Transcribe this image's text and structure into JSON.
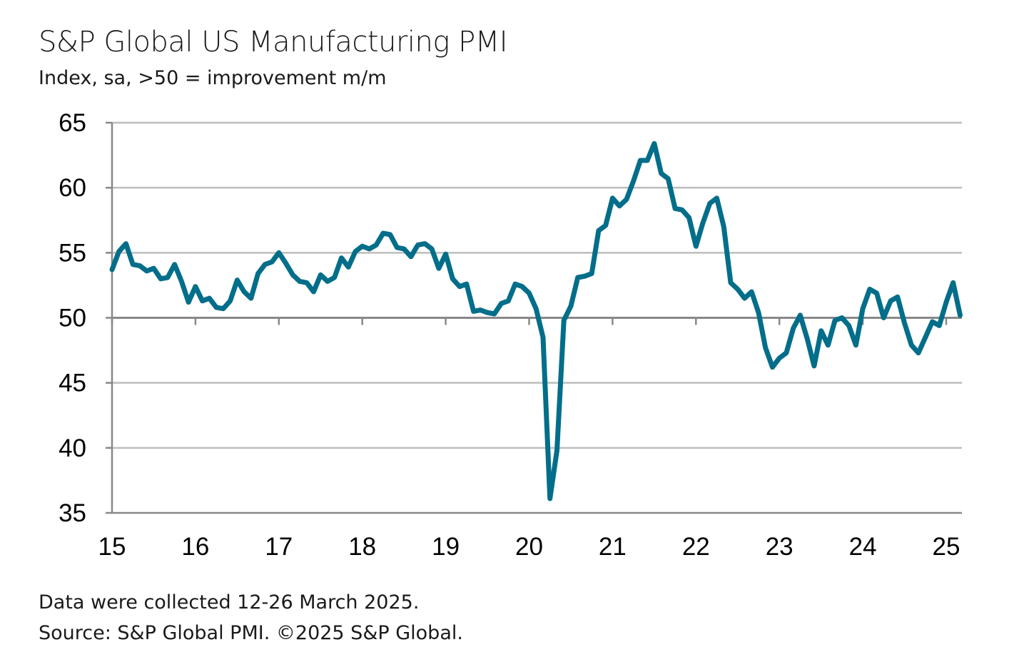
{
  "chart_data": {
    "type": "line",
    "title": "S&P Global US Manufacturing PMI",
    "subtitle": "Index, sa, >50 = improvement m/m",
    "xlabel": "",
    "ylabel": "",
    "ylim": [
      35,
      65
    ],
    "yticks": [
      "35",
      "40",
      "45",
      "50",
      "55",
      "60",
      "65"
    ],
    "xticks": [
      "15",
      "16",
      "17",
      "18",
      "19",
      "20",
      "21",
      "22",
      "23",
      "24",
      "25"
    ],
    "x_start": "Jan 2015",
    "x_end": "Mar 2025",
    "grid": true,
    "color": "#036e8a",
    "series": [
      {
        "name": "US Manufacturing PMI",
        "values": [
          53.7,
          55.1,
          55.7,
          54.1,
          54.0,
          53.6,
          53.8,
          53.0,
          53.1,
          54.1,
          52.8,
          51.2,
          52.4,
          51.3,
          51.5,
          50.8,
          50.7,
          51.3,
          52.9,
          52.0,
          51.5,
          53.4,
          54.1,
          54.3,
          55.0,
          54.2,
          53.3,
          52.8,
          52.7,
          52.0,
          53.3,
          52.8,
          53.1,
          54.6,
          53.9,
          55.1,
          55.5,
          55.3,
          55.6,
          56.5,
          56.4,
          55.4,
          55.3,
          54.7,
          55.6,
          55.7,
          55.3,
          53.8,
          54.9,
          53.0,
          52.4,
          52.6,
          50.5,
          50.6,
          50.4,
          50.3,
          51.1,
          51.3,
          52.6,
          52.4,
          51.9,
          50.7,
          48.5,
          36.1,
          39.8,
          49.8,
          50.9,
          53.1,
          53.2,
          53.4,
          56.7,
          57.1,
          59.2,
          58.6,
          59.1,
          60.5,
          62.1,
          62.1,
          63.4,
          61.1,
          60.7,
          58.4,
          58.3,
          57.7,
          55.5,
          57.3,
          58.8,
          59.2,
          57.0,
          52.7,
          52.2,
          51.5,
          52.0,
          50.4,
          47.7,
          46.2,
          46.9,
          47.3,
          49.2,
          50.2,
          48.4,
          46.3,
          49.0,
          47.9,
          49.8,
          50.0,
          49.4,
          47.9,
          50.7,
          52.2,
          51.9,
          50.0,
          51.3,
          51.6,
          49.6,
          47.9,
          47.3,
          48.5,
          49.7,
          49.4,
          51.2,
          52.7,
          50.2
        ]
      }
    ]
  },
  "footer": {
    "note": "Data were collected 12-26 March 2025.",
    "source": "Source: S&P Global PMI. ©2025 S&P Global."
  }
}
